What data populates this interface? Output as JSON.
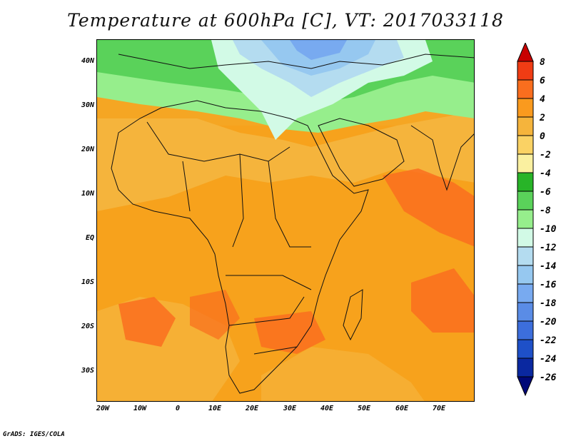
{
  "title": "Temperature at 600hPa [C], VT: 2017033118",
  "lat_labels": [
    "40N",
    "30N",
    "20N",
    "10N",
    "EQ",
    "10S",
    "20S",
    "30S"
  ],
  "lon_labels": [
    "20W",
    "10W",
    "0",
    "10E",
    "20E",
    "30E",
    "40E",
    "50E",
    "60E",
    "70E"
  ],
  "colorbar": {
    "labels": [
      "8",
      "6",
      "4",
      "2",
      "0",
      "-2",
      "-4",
      "-6",
      "-8",
      "-10",
      "-12",
      "-14",
      "-16",
      "-18",
      "-20",
      "-22",
      "-24",
      "-26"
    ],
    "colors": [
      "#c80000",
      "#f03c14",
      "#fa6e1e",
      "#fa9a1e",
      "#f5b43c",
      "#fad264",
      "#faf0a0",
      "#28b428",
      "#5ad25a",
      "#96ee8c",
      "#d2fae6",
      "#b4dcf0",
      "#96c8f0",
      "#78aaf0",
      "#5a8ce6",
      "#3c6edc",
      "#1e50c8",
      "#0a28a0",
      "#000878"
    ]
  },
  "footer": "GrADS: IGES/COLA"
}
